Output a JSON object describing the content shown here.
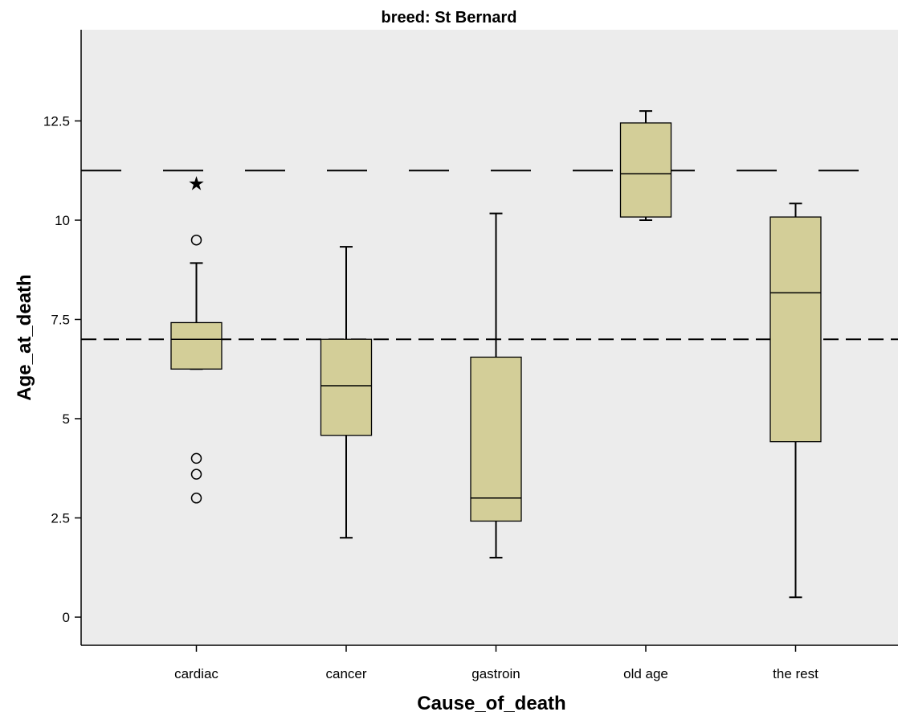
{
  "chart_data": {
    "type": "boxplot",
    "title": "breed: St Bernard",
    "xlabel": "Cause_of_death",
    "ylabel": "Age_at_death",
    "ylim": [
      -0.7,
      14.75
    ],
    "yticks": [
      0,
      2.5,
      5,
      7.5,
      10,
      12.5
    ],
    "ytick_labels": [
      "0",
      "2.5",
      "5",
      "7.5",
      "10",
      "12.5"
    ],
    "grid": false,
    "colors": {
      "plot_bg": "#ececec",
      "box_fill": "#d3ce98",
      "stroke": "#000000"
    },
    "categories": [
      "cardiac",
      "cancer",
      "gastroin",
      "old age",
      "the rest"
    ],
    "boxes": [
      {
        "category": "cardiac",
        "whisker_low": 6.25,
        "q1": 6.25,
        "median": 7.0,
        "q3": 7.42,
        "whisker_high": 8.92,
        "outliers": [
          9.5,
          4.0,
          3.6,
          3.0
        ],
        "extremes": [
          11.0
        ]
      },
      {
        "category": "cancer",
        "whisker_low": 2.0,
        "q1": 4.58,
        "median": 5.83,
        "q3": 7.0,
        "whisker_high": 9.33,
        "outliers": [],
        "extremes": []
      },
      {
        "category": "gastroin",
        "whisker_low": 1.5,
        "q1": 2.42,
        "median": 3.0,
        "q3": 6.55,
        "whisker_high": 10.17,
        "outliers": [],
        "extremes": []
      },
      {
        "category": "old age",
        "whisker_low": 10.0,
        "q1": 10.08,
        "median": 11.17,
        "q3": 12.45,
        "whisker_high": 12.75,
        "outliers": [],
        "extremes": []
      },
      {
        "category": "the rest",
        "whisker_low": 0.5,
        "q1": 4.42,
        "median": 8.17,
        "q3": 10.08,
        "whisker_high": 10.42,
        "outliers": [],
        "extremes": []
      }
    ],
    "reference_lines": [
      {
        "y": 11.25,
        "style": "long-dash"
      },
      {
        "y": 7.0,
        "style": "short-dash"
      }
    ]
  }
}
